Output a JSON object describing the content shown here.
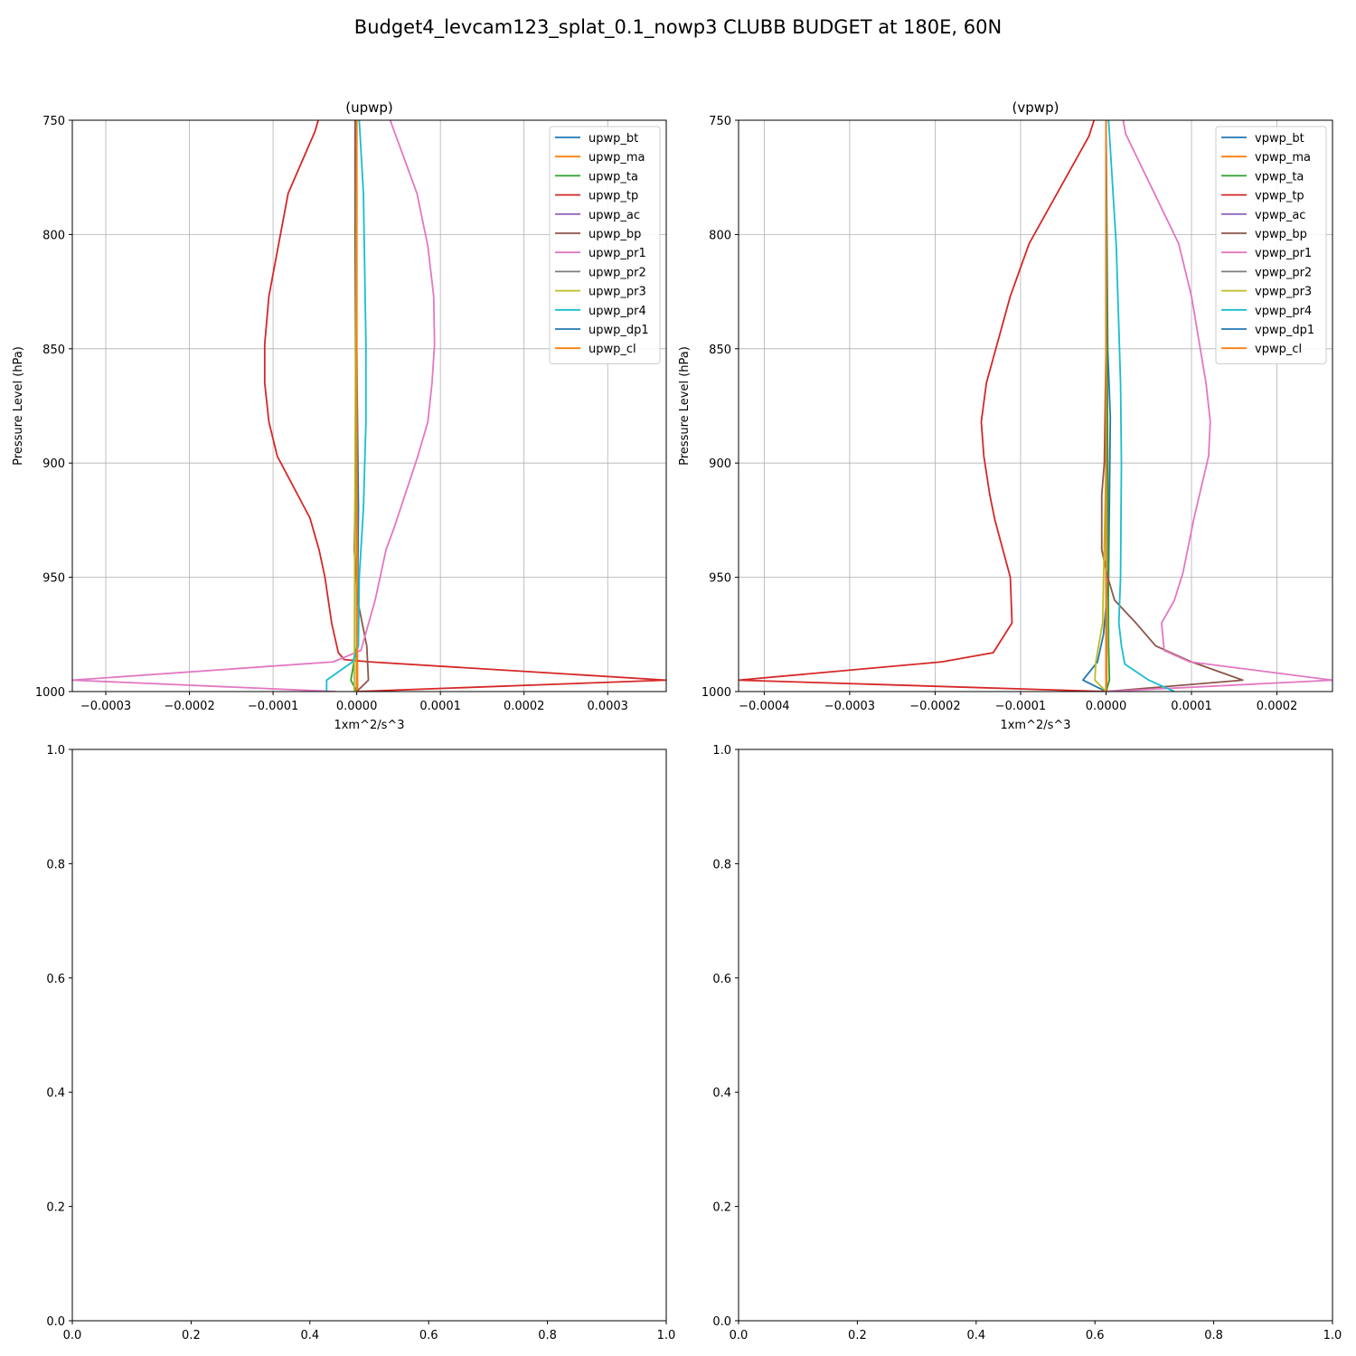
{
  "figure": {
    "title": "Budget4_levcam123_splat_0.1_nowp3 CLUBB BUDGET at 180E, 60N"
  },
  "chart_data": [
    {
      "type": "line",
      "title": "(upwp)",
      "xlabel": "1xm^2/s^3",
      "ylabel": "Pressure Level (hPa)",
      "xlim": [
        -0.00034,
        0.00037
      ],
      "ylim": [
        1000,
        750
      ],
      "grid": true,
      "legend": "top-right",
      "xticks": [
        -0.0003,
        -0.0002,
        -0.0001,
        0.0,
        0.0001,
        0.0002,
        0.0003
      ],
      "xtick_labels": [
        "−0.0003",
        "−0.0002",
        "−0.0001",
        "0.0000",
        "0.0001",
        "0.0002",
        "0.0003"
      ],
      "yticks": [
        750,
        800,
        850,
        900,
        950,
        1000
      ],
      "ytick_labels": [
        "750",
        "800",
        "850",
        "900",
        "950",
        "1000"
      ],
      "series": [
        {
          "name": "upwp_bt",
          "color": "#1f77b4",
          "points": [
            [
              0.0,
              750
            ],
            [
              0.0,
              850
            ],
            [
              2e-06,
              920
            ],
            [
              0.0,
              1000
            ]
          ]
        },
        {
          "name": "upwp_ma",
          "color": "#ff7f0e",
          "points": [
            [
              0.0,
              750
            ],
            [
              0.0,
              900
            ],
            [
              1e-06,
              1000
            ]
          ]
        },
        {
          "name": "upwp_ta",
          "color": "#2ca02c",
          "points": [
            [
              0.0,
              750
            ],
            [
              0.0,
              980
            ],
            [
              -7e-06,
              995
            ],
            [
              0.0,
              1000
            ]
          ]
        },
        {
          "name": "upwp_tp",
          "color": "#d62728",
          "points": [
            [
              -4.6e-05,
              750
            ],
            [
              -5e-05,
              755
            ],
            [
              -8.2e-05,
              782
            ],
            [
              -0.000105,
              827
            ],
            [
              -0.00011,
              848
            ],
            [
              -0.00011,
              865
            ],
            [
              -0.000105,
              882
            ],
            [
              -9.5e-05,
              897
            ],
            [
              -5.6e-05,
              924
            ],
            [
              -4.5e-05,
              938
            ],
            [
              -3.8e-05,
              950
            ],
            [
              -3e-05,
              970
            ],
            [
              -2.2e-05,
              983
            ],
            [
              -1.5e-05,
              986
            ],
            [
              1.5e-05,
              987
            ],
            [
              0.00037,
              995
            ],
            [
              0.0,
              1000
            ]
          ]
        },
        {
          "name": "upwp_ac",
          "color": "#9467bd",
          "points": [
            [
              0.0,
              750
            ],
            [
              0.0,
              1000
            ]
          ]
        },
        {
          "name": "upwp_bp",
          "color": "#8c564b",
          "points": [
            [
              -2e-06,
              750
            ],
            [
              -2e-06,
              800
            ],
            [
              -1e-06,
              900
            ],
            [
              -3e-06,
              938
            ],
            [
              1e-06,
              960
            ],
            [
              1.2e-05,
              980
            ],
            [
              1.4e-05,
              995
            ],
            [
              0.0,
              1000
            ]
          ]
        },
        {
          "name": "upwp_pr1",
          "color": "#e377c2",
          "points": [
            [
              4e-05,
              750
            ],
            [
              7.2e-05,
              782
            ],
            [
              8.5e-05,
              805
            ],
            [
              9.2e-05,
              827
            ],
            [
              9.3e-05,
              848
            ],
            [
              9e-05,
              865
            ],
            [
              8.5e-05,
              882
            ],
            [
              7.3e-05,
              897
            ],
            [
              4.5e-05,
              928
            ],
            [
              3.5e-05,
              938
            ],
            [
              2.2e-05,
              960
            ],
            [
              5e-06,
              982
            ],
            [
              -2.8e-05,
              987
            ],
            [
              -0.00034,
              995
            ],
            [
              -2.5e-05,
              1000
            ]
          ]
        },
        {
          "name": "upwp_pr2",
          "color": "#7f7f7f",
          "points": [
            [
              0.0,
              750
            ],
            [
              0.0,
              1000
            ]
          ]
        },
        {
          "name": "upwp_pr3",
          "color": "#bcbd22",
          "points": [
            [
              0.0,
              750
            ],
            [
              -2e-06,
              900
            ],
            [
              -3e-06,
              1000
            ]
          ]
        },
        {
          "name": "upwp_pr4",
          "color": "#17becf",
          "points": [
            [
              3e-06,
              750
            ],
            [
              8e-06,
              782
            ],
            [
              1.1e-05,
              848
            ],
            [
              1.1e-05,
              882
            ],
            [
              8e-06,
              920
            ],
            [
              3e-06,
              950
            ],
            [
              2e-06,
              980
            ],
            [
              -5e-06,
              987
            ],
            [
              -3.6e-05,
              995
            ],
            [
              -3.6e-05,
              1000
            ]
          ]
        },
        {
          "name": "upwp_dp1",
          "color": "#1f77b4",
          "points": [
            [
              0.0,
              750
            ],
            [
              0.0,
              1000
            ]
          ]
        },
        {
          "name": "upwp_cl",
          "color": "#ff7f0e",
          "points": [
            [
              0.0,
              750
            ],
            [
              0.0,
              1000
            ]
          ]
        }
      ]
    },
    {
      "type": "line",
      "title": "(vpwp)",
      "xlabel": "1xm^2/s^3",
      "ylabel": "Pressure Level (hPa)",
      "xlim": [
        -0.00043,
        0.000265
      ],
      "ylim": [
        1000,
        750
      ],
      "grid": true,
      "legend": "top-right",
      "xticks": [
        -0.0004,
        -0.0003,
        -0.0002,
        -0.0001,
        0.0,
        0.0001,
        0.0002
      ],
      "xtick_labels": [
        "−0.0004",
        "−0.0003",
        "−0.0002",
        "−0.0001",
        "0.0000",
        "0.0001",
        "0.0002"
      ],
      "yticks": [
        750,
        800,
        850,
        900,
        950,
        1000
      ],
      "ytick_labels": [
        "750",
        "800",
        "850",
        "900",
        "950",
        "1000"
      ],
      "series": [
        {
          "name": "vpwp_bt",
          "color": "#1f77b4",
          "points": [
            [
              0.0,
              750
            ],
            [
              2e-06,
              850
            ],
            [
              5e-06,
              880
            ],
            [
              3e-06,
              950
            ],
            [
              -3e-06,
              975
            ],
            [
              -1e-05,
              987
            ],
            [
              -2.7e-05,
              995
            ],
            [
              0.0,
              1000
            ]
          ]
        },
        {
          "name": "vpwp_ma",
          "color": "#ff7f0e",
          "points": [
            [
              0.0,
              750
            ],
            [
              0.0,
              900
            ],
            [
              1e-06,
              1000
            ]
          ]
        },
        {
          "name": "vpwp_ta",
          "color": "#2ca02c",
          "points": [
            [
              0.0,
              750
            ],
            [
              2e-06,
              900
            ],
            [
              3e-06,
              980
            ],
            [
              4e-06,
              995
            ],
            [
              0.0,
              1000
            ]
          ]
        },
        {
          "name": "vpwp_tp",
          "color": "#d62728",
          "points": [
            [
              -1.4e-05,
              750
            ],
            [
              -2e-05,
              757
            ],
            [
              -9e-05,
              804
            ],
            [
              -0.000112,
              827
            ],
            [
              -0.00014,
              865
            ],
            [
              -0.000146,
              882
            ],
            [
              -0.000143,
              897
            ],
            [
              -0.000136,
              914
            ],
            [
              -0.00013,
              925
            ],
            [
              -0.000112,
              950
            ],
            [
              -0.000111,
              960
            ],
            [
              -0.00011,
              970
            ],
            [
              -0.000132,
              983
            ],
            [
              -0.000192,
              987
            ],
            [
              -0.00043,
              995
            ],
            [
              0.0,
              1000
            ]
          ]
        },
        {
          "name": "vpwp_ac",
          "color": "#9467bd",
          "points": [
            [
              0.0,
              750
            ],
            [
              0.0,
              1000
            ]
          ]
        },
        {
          "name": "vpwp_bp",
          "color": "#8c564b",
          "points": [
            [
              0.0,
              750
            ],
            [
              0.0,
              850
            ],
            [
              -2e-06,
              900
            ],
            [
              -5e-06,
              914
            ],
            [
              -5e-06,
              938
            ],
            [
              2e-06,
              950
            ],
            [
              1e-05,
              960
            ],
            [
              3.5e-05,
              970
            ],
            [
              5.8e-05,
              980
            ],
            [
              0.0001,
              987
            ],
            [
              0.00016,
              995
            ],
            [
              0.0,
              1000
            ]
          ]
        },
        {
          "name": "vpwp_pr1",
          "color": "#e377c2",
          "points": [
            [
              2e-05,
              750
            ],
            [
              2.3e-05,
              756
            ],
            [
              8.5e-05,
              804
            ],
            [
              0.0001,
              827
            ],
            [
              0.000117,
              865
            ],
            [
              0.000122,
              882
            ],
            [
              0.00012,
              897
            ],
            [
              0.000103,
              924
            ],
            [
              9e-05,
              948
            ],
            [
              8e-05,
              960
            ],
            [
              6.5e-05,
              970
            ],
            [
              6.8e-05,
              982
            ],
            [
              9.8e-05,
              987
            ],
            [
              0.000265,
              995
            ],
            [
              0.0,
              1000
            ]
          ]
        },
        {
          "name": "vpwp_pr2",
          "color": "#7f7f7f",
          "points": [
            [
              0.0,
              750
            ],
            [
              0.0,
              1000
            ]
          ]
        },
        {
          "name": "vpwp_pr3",
          "color": "#bcbd22",
          "points": [
            [
              0.0,
              750
            ],
            [
              0.0,
              900
            ],
            [
              -4e-06,
              970
            ],
            [
              -1.2e-05,
              987
            ],
            [
              -1.3e-05,
              995
            ],
            [
              0.0,
              1000
            ]
          ]
        },
        {
          "name": "vpwp_pr4",
          "color": "#17becf",
          "points": [
            [
              3e-06,
              750
            ],
            [
              1.2e-05,
              805
            ],
            [
              1.7e-05,
              865
            ],
            [
              1.8e-05,
              900
            ],
            [
              1.7e-05,
              950
            ],
            [
              1.5e-05,
              970
            ],
            [
              1.8e-05,
              980
            ],
            [
              2.2e-05,
              988
            ],
            [
              5e-05,
              995
            ],
            [
              8e-05,
              1000
            ]
          ]
        },
        {
          "name": "vpwp_dp1",
          "color": "#1f77b4",
          "points": [
            [
              0.0,
              750
            ],
            [
              0.0,
              1000
            ]
          ]
        },
        {
          "name": "vpwp_cl",
          "color": "#ff7f0e",
          "points": [
            [
              0.0,
              750
            ],
            [
              0.0,
              1000
            ]
          ]
        }
      ]
    },
    {
      "type": "line",
      "title": "",
      "xlim": [
        0,
        1
      ],
      "ylim": [
        0,
        1
      ],
      "grid": false,
      "xticks": [
        0.0,
        0.2,
        0.4,
        0.6,
        0.8,
        1.0
      ],
      "xtick_labels": [
        "0.0",
        "0.2",
        "0.4",
        "0.6",
        "0.8",
        "1.0"
      ],
      "yticks": [
        0.0,
        0.2,
        0.4,
        0.6,
        0.8,
        1.0
      ],
      "ytick_labels": [
        "0.0",
        "0.2",
        "0.4",
        "0.6",
        "0.8",
        "1.0"
      ],
      "series": []
    },
    {
      "type": "line",
      "title": "",
      "xlim": [
        0,
        1
      ],
      "ylim": [
        0,
        1
      ],
      "grid": false,
      "xticks": [
        0.0,
        0.2,
        0.4,
        0.6,
        0.8,
        1.0
      ],
      "xtick_labels": [
        "0.0",
        "0.2",
        "0.4",
        "0.6",
        "0.8",
        "1.0"
      ],
      "yticks": [
        0.0,
        0.2,
        0.4,
        0.6,
        0.8,
        1.0
      ],
      "ytick_labels": [
        "0.0",
        "0.2",
        "0.4",
        "0.6",
        "0.8",
        "1.0"
      ],
      "series": []
    }
  ]
}
